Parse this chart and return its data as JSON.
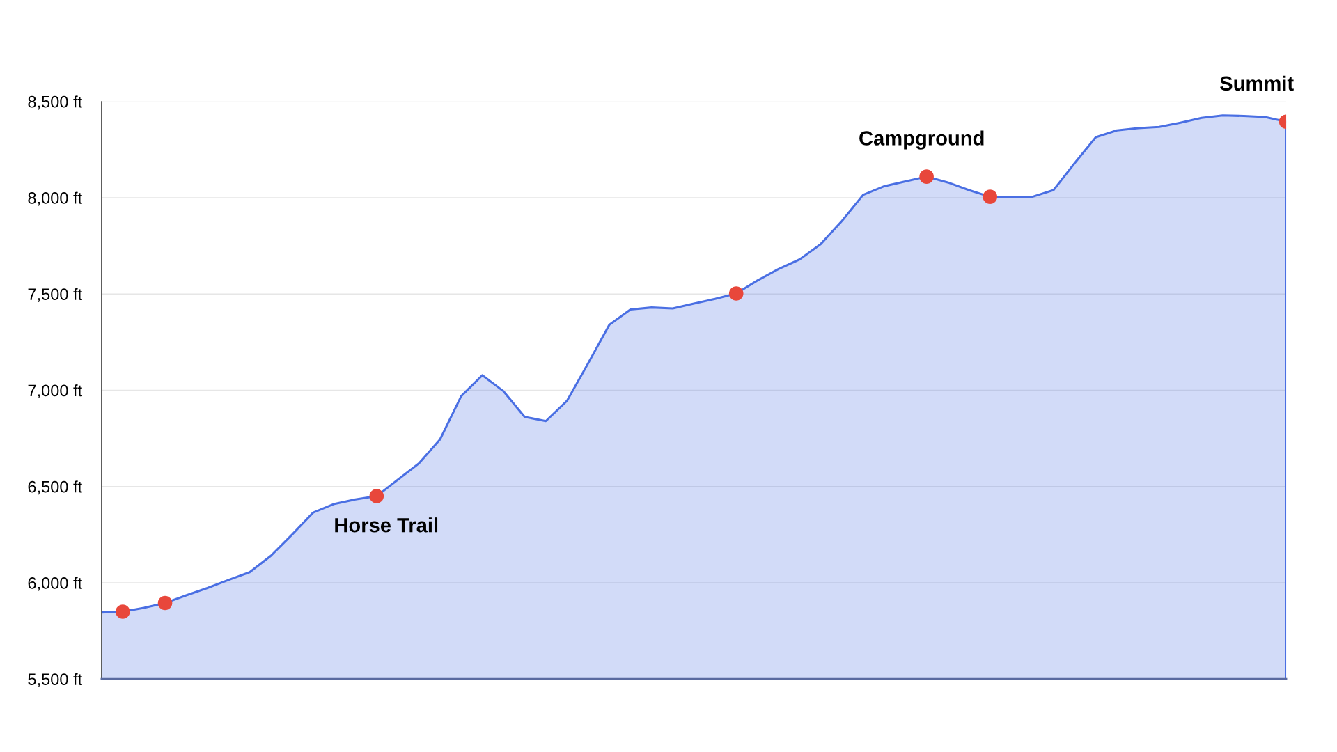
{
  "chart_data": {
    "type": "area",
    "categories": [
      null,
      null,
      null,
      null,
      null,
      null,
      null,
      null,
      null,
      null,
      null,
      null,
      null,
      null,
      null,
      null,
      null,
      null,
      null,
      null,
      null,
      null,
      null,
      null,
      null,
      null,
      null,
      null,
      null,
      null,
      null,
      null,
      null,
      null,
      null,
      null,
      null,
      null,
      null,
      null,
      null,
      null,
      null,
      null,
      null,
      null,
      null,
      null,
      null,
      null,
      null,
      null,
      null,
      null,
      null,
      null,
      null
    ],
    "series": [
      {
        "color": "#4a6fe3",
        "values": [
          5846,
          5850,
          5870,
          5895,
          5935,
          5973,
          6015,
          6055,
          6140,
          6250,
          6365,
          6410,
          6433,
          6450,
          6535,
          6620,
          6745,
          6970,
          7078,
          6995,
          6862,
          6840,
          6945,
          7140,
          7340,
          7420,
          7430,
          7425,
          7450,
          7475,
          7503,
          7570,
          7630,
          7680,
          7760,
          7880,
          8015,
          8060,
          8085,
          8110,
          8080,
          8040,
          8005,
          8003,
          8005,
          8040,
          8180,
          8315,
          8350,
          8362,
          8368,
          8390,
          8415,
          8428,
          8425,
          8420,
          8395
        ]
      },
      {
        "type": "scatter",
        "marker": "circle",
        "color": "#e8473b",
        "values": [
          null,
          5850,
          null,
          5895,
          null,
          null,
          null,
          null,
          null,
          null,
          null,
          null,
          null,
          6450,
          null,
          null,
          null,
          null,
          null,
          null,
          null,
          null,
          null,
          null,
          null,
          null,
          null,
          null,
          null,
          null,
          7503,
          null,
          null,
          null,
          null,
          null,
          null,
          null,
          null,
          8110,
          null,
          null,
          8005,
          null,
          null,
          null,
          null,
          null,
          null,
          null,
          null,
          null,
          null,
          null,
          null,
          null,
          8395
        ],
        "value_labels": [
          null,
          null,
          null,
          null,
          null,
          null,
          null,
          null,
          null,
          null,
          null,
          null,
          null,
          "Horse Trail",
          null,
          null,
          null,
          null,
          null,
          null,
          null,
          null,
          null,
          null,
          null,
          null,
          null,
          null,
          null,
          null,
          null,
          null,
          null,
          null,
          null,
          null,
          null,
          null,
          null,
          "Campground",
          null,
          null,
          null,
          null,
          null,
          null,
          null,
          null,
          null,
          null,
          null,
          null,
          null,
          null,
          null,
          null,
          "Summit"
        ]
      }
    ],
    "ylim": [
      5500,
      8500
    ],
    "yticks": [
      {
        "value": 5500,
        "label": "5,500 ft"
      },
      {
        "value": 6000,
        "label": "6,000 ft"
      },
      {
        "value": 6500,
        "label": "6,500 ft"
      },
      {
        "value": 7000,
        "label": "7,000 ft"
      },
      {
        "value": 7500,
        "label": "7,500 ft"
      },
      {
        "value": 8000,
        "label": "8,000 ft"
      },
      {
        "value": 8500,
        "label": "8,500 ft"
      }
    ],
    "grid": "y",
    "legend": false
  }
}
